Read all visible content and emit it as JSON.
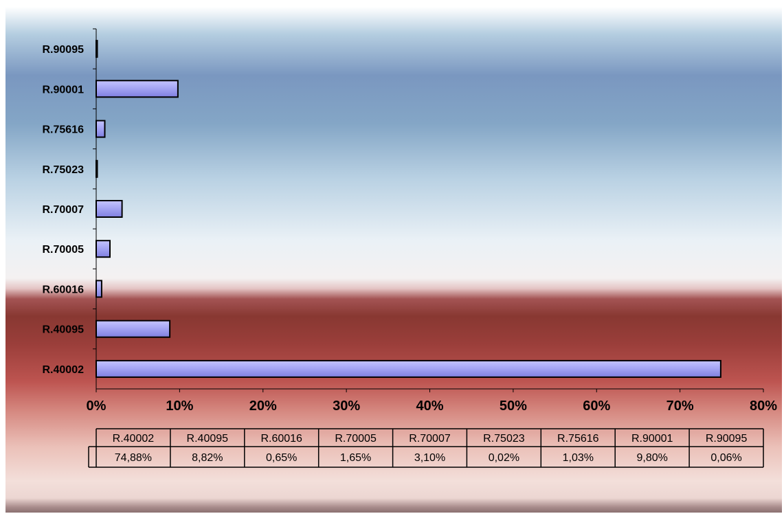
{
  "chart_data": {
    "type": "bar",
    "orientation": "horizontal",
    "categories": [
      "R.40002",
      "R.40095",
      "R.60016",
      "R.70005",
      "R.70007",
      "R.75023",
      "R.75616",
      "R.90001",
      "R.90095"
    ],
    "values": [
      74.88,
      8.82,
      0.65,
      1.65,
      3.1,
      0.02,
      1.03,
      9.8,
      0.06
    ],
    "value_labels": [
      "74,88%",
      "8,82%",
      "0,65%",
      "1,65%",
      "3,10%",
      "0,02%",
      "1,03%",
      "9,80%",
      "0,06%"
    ],
    "x_ticks": [
      "0%",
      "10%",
      "20%",
      "30%",
      "40%",
      "50%",
      "60%",
      "70%",
      "80%"
    ],
    "xlim": [
      0,
      80
    ],
    "title": "",
    "xlabel": "",
    "ylabel": "",
    "grid": false,
    "data_table": true,
    "colors": {
      "bar_fill": "#9d9df2",
      "bar_stroke": "#000000"
    }
  }
}
